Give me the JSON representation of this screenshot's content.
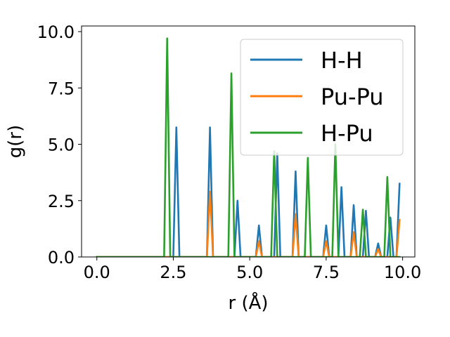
{
  "chart_data": {
    "type": "line",
    "title": "",
    "xlabel": "r (Å)",
    "ylabel": "g(r)",
    "xlim": [
      -0.5,
      10.4
    ],
    "ylim": [
      0,
      10.25
    ],
    "x_ticks": [
      "0.0",
      "2.5",
      "5.0",
      "7.5",
      "10.0"
    ],
    "y_ticks": [
      "0.0",
      "2.5",
      "5.0",
      "7.5",
      "10.0"
    ],
    "grid": false,
    "legend_position": "upper right",
    "series": [
      {
        "name": "H-H",
        "color": "#1f77b4",
        "x": [
          0.0,
          2.5,
          2.6,
          2.7,
          3.6,
          3.7,
          3.8,
          4.5,
          4.6,
          4.7,
          5.2,
          5.3,
          5.4,
          5.8,
          5.9,
          6.0,
          6.4,
          6.5,
          6.6,
          7.4,
          7.5,
          7.6,
          7.9,
          8.0,
          8.1,
          8.3,
          8.4,
          8.5,
          8.7,
          8.8,
          8.9,
          9.1,
          9.2,
          9.3,
          9.5,
          9.6,
          9.7,
          9.8,
          9.9
        ],
        "y": [
          0,
          0,
          5.75,
          0,
          0,
          5.75,
          0,
          0,
          2.5,
          0,
          0,
          1.4,
          0,
          0,
          4.6,
          0,
          0,
          3.8,
          0,
          0,
          1.4,
          0,
          0,
          3.1,
          0,
          0,
          2.3,
          0,
          0,
          2.05,
          0,
          0,
          0.6,
          0,
          0,
          1.75,
          0,
          0,
          3.25
        ]
      },
      {
        "name": "Pu-Pu",
        "color": "#ff7f0e",
        "x": [
          0.0,
          3.6,
          3.7,
          3.8,
          5.2,
          5.3,
          5.4,
          6.4,
          6.5,
          6.6,
          7.4,
          7.5,
          7.6,
          8.3,
          8.4,
          8.5,
          9.1,
          9.2,
          9.3,
          9.8,
          9.9
        ],
        "y": [
          0,
          0,
          2.9,
          0,
          0,
          0.7,
          0,
          0,
          1.9,
          0,
          0,
          0.7,
          0,
          0,
          1.1,
          0,
          0,
          0.35,
          0,
          0,
          1.65
        ]
      },
      {
        "name": "H-Pu",
        "color": "#2ca02c",
        "x": [
          0.0,
          2.2,
          2.3,
          2.4,
          4.3,
          4.4,
          4.5,
          5.7,
          5.8,
          5.9,
          6.8,
          6.9,
          7.0,
          7.7,
          7.8,
          7.9,
          8.6,
          8.7,
          8.8,
          9.4,
          9.5,
          9.6,
          9.9
        ],
        "y": [
          0,
          0,
          9.7,
          0,
          0,
          8.15,
          0,
          0,
          4.7,
          0,
          0,
          4.4,
          0,
          0,
          5.0,
          0,
          0,
          2.1,
          0,
          0,
          3.55,
          0,
          0
        ]
      }
    ]
  }
}
